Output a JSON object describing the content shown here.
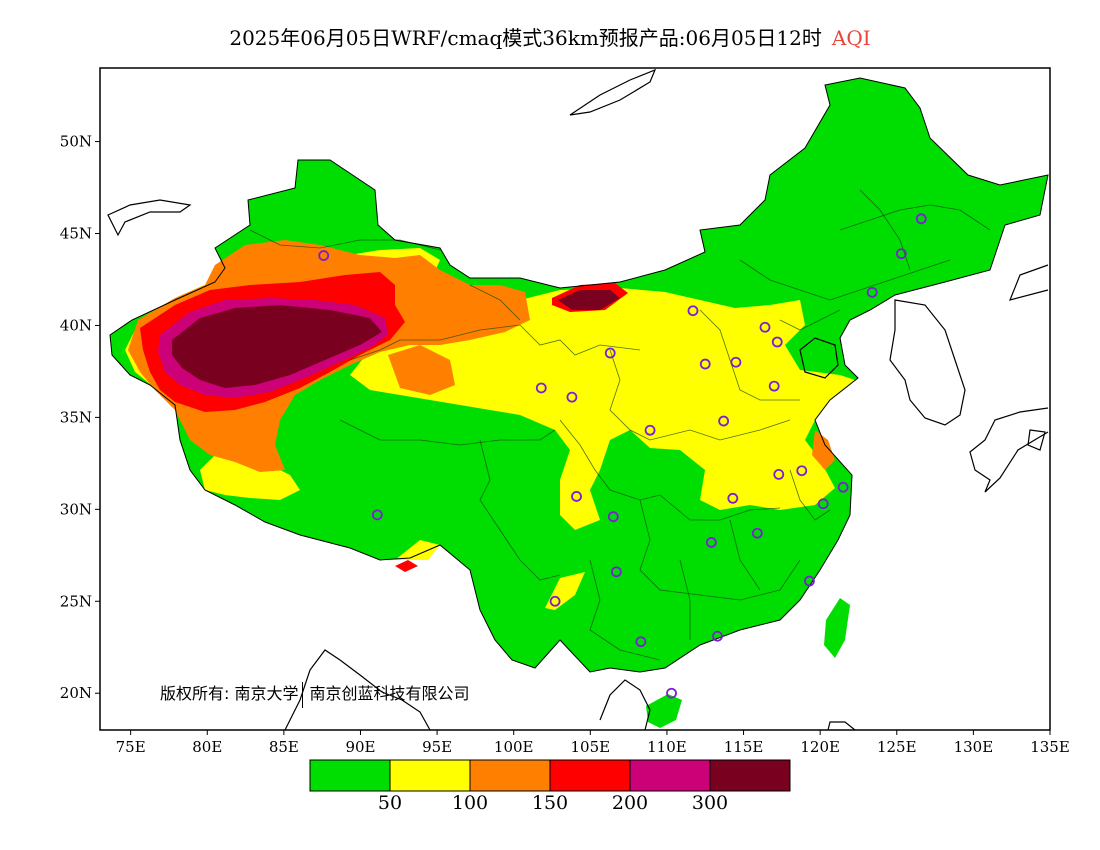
{
  "title": {
    "main": "2025年06月05日WRF/cmaq模式36km预报产品:06月05日12时",
    "variable": "AQI"
  },
  "colors": {
    "aqi_label": "#e8463c",
    "ocean": "#ffffff",
    "good": "#00dd00",
    "moderate": "#ffff00",
    "sensitive": "#ff8000",
    "unhealthy": "#ff0000",
    "very_unhealthy": "#cc0077",
    "hazardous": "#7a0020",
    "city_marker": "#7a1fd6"
  },
  "map": {
    "lon_min": 73,
    "lon_max": 135,
    "lat_min": 18,
    "lat_max": 54,
    "x_ticks": [
      "75E",
      "80E",
      "85E",
      "90E",
      "95E",
      "100E",
      "105E",
      "110E",
      "115E",
      "120E",
      "125E",
      "130E",
      "135E"
    ],
    "y_ticks": [
      "50N",
      "45N",
      "40N",
      "35N",
      "30N",
      "25N",
      "20N"
    ]
  },
  "legend": {
    "thresholds": [
      "50",
      "100",
      "150",
      "200",
      "300"
    ],
    "swatches": [
      "#00dd00",
      "#ffff00",
      "#ff8000",
      "#ff0000",
      "#cc0077",
      "#7a0020"
    ]
  },
  "copyright": {
    "owner_a": "版权所有: 南京大学",
    "owner_b": "南京创蓝科技有限公司"
  },
  "cities": [
    {
      "lon": 87.6,
      "lat": 43.8
    },
    {
      "lon": 91.1,
      "lat": 29.7
    },
    {
      "lon": 101.8,
      "lat": 36.6
    },
    {
      "lon": 103.8,
      "lat": 36.1
    },
    {
      "lon": 106.3,
      "lat": 38.5
    },
    {
      "lon": 111.7,
      "lat": 40.8
    },
    {
      "lon": 112.5,
      "lat": 37.9
    },
    {
      "lon": 114.5,
      "lat": 38.0
    },
    {
      "lon": 116.4,
      "lat": 39.9
    },
    {
      "lon": 117.2,
      "lat": 39.1
    },
    {
      "lon": 123.4,
      "lat": 41.8
    },
    {
      "lon": 125.3,
      "lat": 43.9
    },
    {
      "lon": 126.6,
      "lat": 45.8
    },
    {
      "lon": 117.0,
      "lat": 36.7
    },
    {
      "lon": 113.7,
      "lat": 34.8
    },
    {
      "lon": 108.9,
      "lat": 34.3
    },
    {
      "lon": 104.1,
      "lat": 30.7
    },
    {
      "lon": 106.5,
      "lat": 29.6
    },
    {
      "lon": 106.7,
      "lat": 26.6
    },
    {
      "lon": 102.7,
      "lat": 25.0
    },
    {
      "lon": 108.3,
      "lat": 22.8
    },
    {
      "lon": 113.3,
      "lat": 23.1
    },
    {
      "lon": 110.3,
      "lat": 20.0
    },
    {
      "lon": 112.9,
      "lat": 28.2
    },
    {
      "lon": 114.3,
      "lat": 30.6
    },
    {
      "lon": 115.9,
      "lat": 28.7
    },
    {
      "lon": 117.3,
      "lat": 31.9
    },
    {
      "lon": 118.8,
      "lat": 32.1
    },
    {
      "lon": 120.2,
      "lat": 30.3
    },
    {
      "lon": 121.5,
      "lat": 31.2
    },
    {
      "lon": 119.3,
      "lat": 26.1
    }
  ]
}
